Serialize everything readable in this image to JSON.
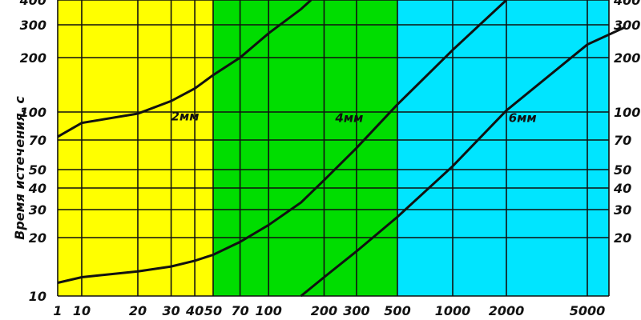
{
  "chart_data": {
    "type": "line",
    "title": "",
    "ylabel": "Время истечения, с",
    "xlabel": "",
    "x_scale": "log",
    "y_scale": "log",
    "xlim": [
      1,
      9000
    ],
    "ylim": [
      10,
      400
    ],
    "x_ticks": [
      {
        "value": 1,
        "label": "1"
      },
      {
        "value": 10,
        "label": "10"
      },
      {
        "value": 20,
        "label": "20"
      },
      {
        "value": 30,
        "label": "30"
      },
      {
        "value": 40,
        "label": "40"
      },
      {
        "value": 50,
        "label": "50"
      },
      {
        "value": 70,
        "label": "70"
      },
      {
        "value": 100,
        "label": "100"
      },
      {
        "value": 200,
        "label": "200"
      },
      {
        "value": 300,
        "label": "300"
      },
      {
        "value": 500,
        "label": "500"
      },
      {
        "value": 1000,
        "label": "1000"
      },
      {
        "value": 2000,
        "label": "2000"
      },
      {
        "value": 5000,
        "label": "5000"
      }
    ],
    "y_ticks_left": [
      {
        "value": 10,
        "label": "10"
      },
      {
        "value": 20,
        "label": "20"
      },
      {
        "value": 30,
        "label": "30"
      },
      {
        "value": 40,
        "label": "40"
      },
      {
        "value": 50,
        "label": "50"
      },
      {
        "value": 70,
        "label": "70"
      },
      {
        "value": 100,
        "label": "100"
      },
      {
        "value": 200,
        "label": "200"
      },
      {
        "value": 300,
        "label": "300"
      },
      {
        "value": 400,
        "label": "400"
      }
    ],
    "y_ticks_right": [
      {
        "value": 20,
        "label": "20"
      },
      {
        "value": 30,
        "label": "30"
      },
      {
        "value": 40,
        "label": "40"
      },
      {
        "value": 50,
        "label": "50"
      },
      {
        "value": 70,
        "label": "70"
      },
      {
        "value": 100,
        "label": "100"
      },
      {
        "value": 200,
        "label": "200"
      },
      {
        "value": 300,
        "label": "300"
      },
      {
        "value": 400,
        "label": "400"
      }
    ],
    "regions": [
      {
        "x_from": 1,
        "x_to": 50,
        "color": "#ffff00"
      },
      {
        "x_from": 50,
        "x_to": 500,
        "color": "#00dd00"
      },
      {
        "x_from": 500,
        "x_to": 9000,
        "color": "#00e5ff"
      }
    ],
    "series": [
      {
        "name": "2мм",
        "label_at": {
          "x": 30,
          "y": 90
        },
        "points": [
          {
            "x": 1,
            "y": 73
          },
          {
            "x": 10,
            "y": 87
          },
          {
            "x": 20,
            "y": 98
          },
          {
            "x": 30,
            "y": 115
          },
          {
            "x": 40,
            "y": 135
          },
          {
            "x": 50,
            "y": 160
          },
          {
            "x": 70,
            "y": 200
          },
          {
            "x": 100,
            "y": 270
          },
          {
            "x": 150,
            "y": 360
          },
          {
            "x": 170,
            "y": 400
          }
        ]
      },
      {
        "name": "4мм",
        "label_at": {
          "x": 230,
          "y": 88
        },
        "points": [
          {
            "x": 1,
            "y": 11.7
          },
          {
            "x": 10,
            "y": 12.5
          },
          {
            "x": 20,
            "y": 13.4
          },
          {
            "x": 30,
            "y": 14.2
          },
          {
            "x": 40,
            "y": 15.2
          },
          {
            "x": 50,
            "y": 16.3
          },
          {
            "x": 70,
            "y": 19
          },
          {
            "x": 100,
            "y": 24
          },
          {
            "x": 150,
            "y": 33
          },
          {
            "x": 200,
            "y": 44
          },
          {
            "x": 300,
            "y": 64
          },
          {
            "x": 500,
            "y": 110
          },
          {
            "x": 1000,
            "y": 220
          },
          {
            "x": 2000,
            "y": 400
          }
        ]
      },
      {
        "name": "6мм",
        "label_at": {
          "x": 2050,
          "y": 88
        },
        "points": [
          {
            "x": 150,
            "y": 10
          },
          {
            "x": 200,
            "y": 12.5
          },
          {
            "x": 300,
            "y": 17
          },
          {
            "x": 500,
            "y": 27
          },
          {
            "x": 1000,
            "y": 52
          },
          {
            "x": 2000,
            "y": 102
          },
          {
            "x": 5000,
            "y": 235
          },
          {
            "x": 7500,
            "y": 290
          }
        ]
      }
    ]
  }
}
